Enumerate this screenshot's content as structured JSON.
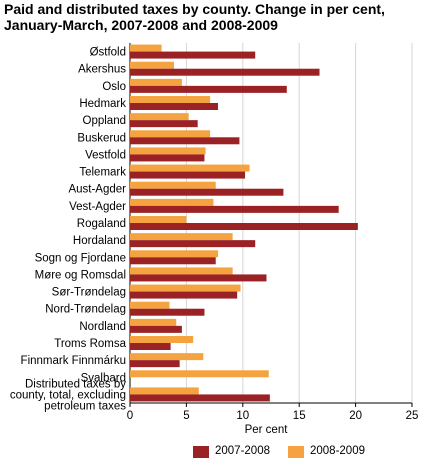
{
  "title_line1": "Paid and distributed taxes by county. Change in per cent,",
  "title_line2": "January-March, 2007-2008 and 2008-2009",
  "chart_data": {
    "type": "bar",
    "orientation": "horizontal",
    "xlabel": "Per cent",
    "xlim": [
      0,
      25
    ],
    "xticks": [
      0,
      5,
      10,
      15,
      20,
      25
    ],
    "grid": true,
    "legend_placement": "bottom",
    "categories": [
      [
        "Østfold"
      ],
      [
        "Akershus"
      ],
      [
        "Oslo"
      ],
      [
        "Hedmark"
      ],
      [
        "Oppland"
      ],
      [
        "Buskerud"
      ],
      [
        "Vestfold"
      ],
      [
        "Telemark"
      ],
      [
        "Aust-Agder"
      ],
      [
        "Vest-Agder"
      ],
      [
        "Rogaland"
      ],
      [
        "Hordaland"
      ],
      [
        "Sogn og Fjordane"
      ],
      [
        "Møre og Romsdal"
      ],
      [
        "Sør-Trøndelag"
      ],
      [
        "Nord-Trøndelag"
      ],
      [
        "Nordland"
      ],
      [
        "Troms Romsa"
      ],
      [
        "Finnmark Finnmárku"
      ],
      [
        "Svalbard"
      ],
      [
        "Distributed taxes by",
        "county, total, excluding",
        "petroleum taxes"
      ]
    ],
    "series": [
      {
        "name": "2008-2009",
        "color": "#f4a340",
        "values": [
          2.8,
          3.9,
          4.6,
          7.1,
          5.2,
          7.1,
          6.7,
          10.6,
          7.6,
          7.4,
          5.0,
          9.1,
          7.8,
          9.1,
          9.8,
          3.5,
          4.1,
          5.6,
          6.5,
          12.3,
          6.1
        ]
      },
      {
        "name": "2007-2008",
        "color": "#9b2224",
        "values": [
          11.1,
          16.8,
          13.9,
          7.8,
          6.0,
          9.7,
          6.6,
          10.2,
          13.6,
          18.5,
          20.2,
          11.1,
          7.6,
          12.1,
          9.5,
          6.6,
          4.6,
          3.6,
          4.4,
          0,
          12.4
        ]
      }
    ]
  },
  "legend": [
    {
      "label": "2007-2008",
      "color": "#9b2224"
    },
    {
      "label": "2008-2009",
      "color": "#f4a340"
    }
  ]
}
